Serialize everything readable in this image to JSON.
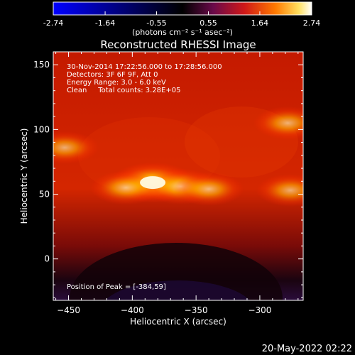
{
  "colorbar": {
    "ticks": [
      "-2.74",
      "-1.64",
      "-0.55",
      "0.55",
      "1.64",
      "2.74"
    ],
    "tick_values": [
      -2.74,
      -1.64,
      -0.55,
      0.55,
      1.64,
      2.74
    ],
    "range": [
      -2.74,
      2.74
    ],
    "unit_label": "(photons cm⁻² s⁻¹ asec⁻²)"
  },
  "chart_data": {
    "type": "heatmap",
    "title": "Reconstructed RHESSI Image",
    "xlabel": "Heliocentric X (arcsec)",
    "ylabel": "Heliocentric Y (arcsec)",
    "xlim": [
      -462,
      -266
    ],
    "ylim": [
      -32,
      160
    ],
    "xticks": [
      -450,
      -400,
      -350,
      -300
    ],
    "yticks": [
      0,
      50,
      100,
      150
    ],
    "colormap": "hot",
    "peak": [
      -384,
      59
    ],
    "annotations": [
      "30-Nov-2014 17:22:56.000 to 17:28:56.000",
      "Detectors: 3F 6F 9F, Att 0",
      "Energy Range: 3.0 - 6.0 keV",
      "Clean     Total counts: 3.28E+05"
    ],
    "peak_label": "Position of Peak = [-384,59]",
    "sources": [
      {
        "x": -384,
        "y": 59,
        "level": 1.0
      },
      {
        "x": -362,
        "y": 56,
        "level": 0.8
      },
      {
        "x": -340,
        "y": 54,
        "level": 0.7
      },
      {
        "x": -453,
        "y": 86,
        "level": 0.66
      },
      {
        "x": -276,
        "y": 53,
        "level": 0.66
      },
      {
        "x": -278,
        "y": 105,
        "level": 0.68
      },
      {
        "x": -405,
        "y": 55,
        "level": 0.72
      }
    ]
  },
  "footer": {
    "timestamp": "20-May-2022 02:22"
  }
}
